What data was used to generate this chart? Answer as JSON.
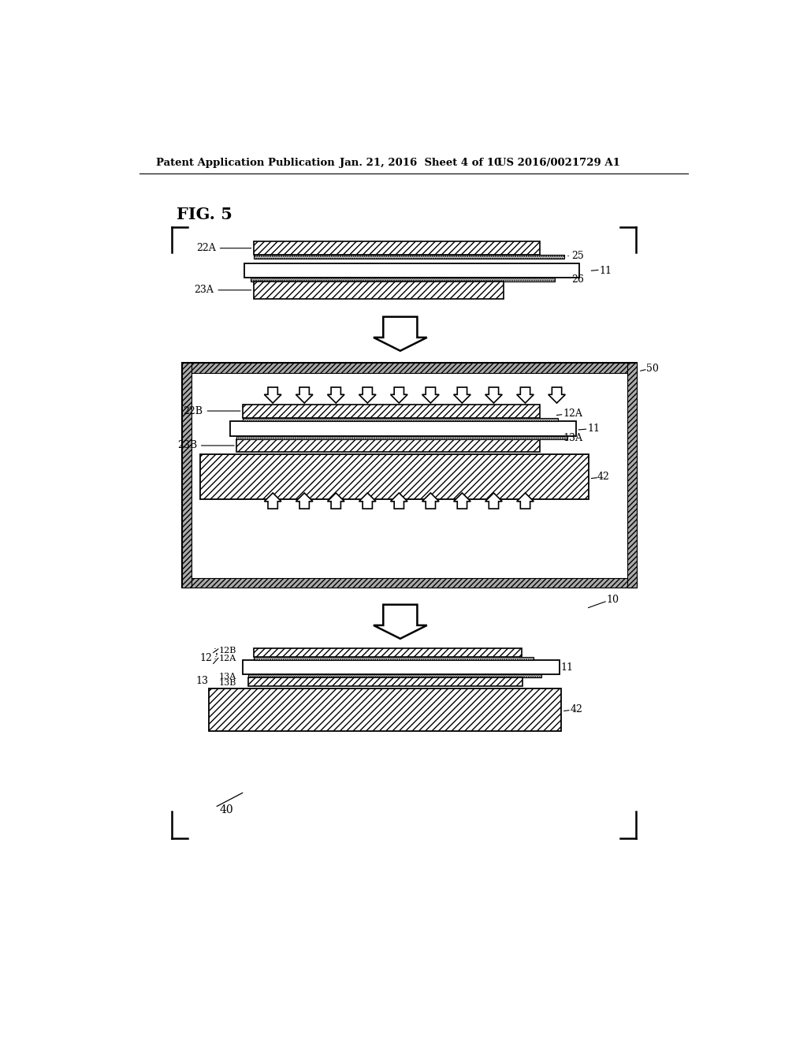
{
  "bg_color": "#ffffff",
  "header_left": "Patent Application Publication",
  "header_mid": "Jan. 21, 2016  Sheet 4 of 10",
  "header_right": "US 2016/0021729 A1",
  "fig_label": "FIG. 5"
}
